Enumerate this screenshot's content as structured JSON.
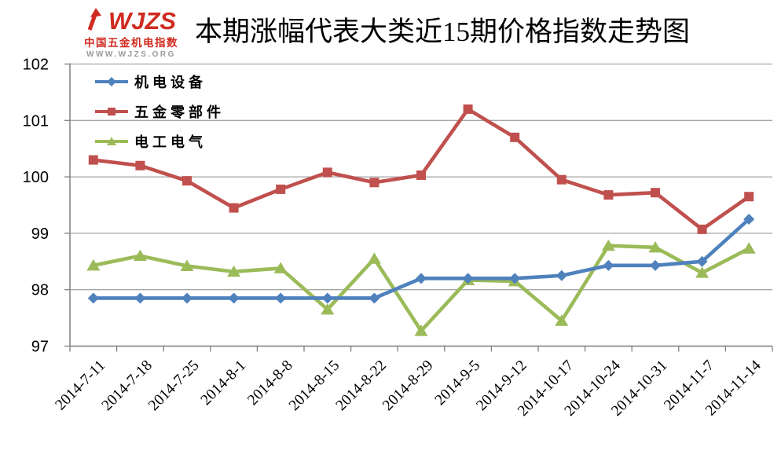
{
  "logo": {
    "brand": "WJZS",
    "subtitle": "中国五金机电指数",
    "url": "WWW.WJZS.ORG",
    "brand_color": "#d02b20"
  },
  "title": "本期涨幅代表大类近15期价格指数走势图",
  "chart_data": {
    "type": "line",
    "title": "本期涨幅代表大类近15期价格指数走势图",
    "categories": [
      "2014-7-11",
      "2014-7-18",
      "2014-7-25",
      "2014-8-1",
      "2014-8-8",
      "2014-8-15",
      "2014-8-22",
      "2014-8-29",
      "2014-9-5",
      "2014-9-12",
      "2014-10-17",
      "2014-10-24",
      "2014-10-31",
      "2014-11-7",
      "2014-11-14"
    ],
    "series": [
      {
        "name": "机电设备",
        "color": "#4f81bd",
        "marker": "diamond",
        "values": [
          97.85,
          97.85,
          97.85,
          97.85,
          97.85,
          97.85,
          97.85,
          98.2,
          98.2,
          98.2,
          98.25,
          98.43,
          98.43,
          98.5,
          99.25
        ]
      },
      {
        "name": "五金零部件",
        "color": "#c0504d",
        "marker": "square",
        "values": [
          100.3,
          100.2,
          99.93,
          99.45,
          99.78,
          100.08,
          99.9,
          100.03,
          101.2,
          100.7,
          99.95,
          99.68,
          99.72,
          99.07,
          99.65
        ]
      },
      {
        "name": "电工电气",
        "color": "#9bbb59",
        "marker": "triangle",
        "values": [
          98.43,
          98.6,
          98.42,
          98.32,
          98.38,
          97.65,
          98.55,
          97.27,
          98.17,
          98.15,
          97.45,
          98.78,
          98.75,
          98.3,
          98.73
        ]
      }
    ],
    "ylim": [
      97,
      102
    ],
    "ytick_step": 1,
    "grid": true,
    "legend_position": "top-left-inside",
    "xlabel": "",
    "ylabel": ""
  },
  "colors": {
    "gridline": "#a6a6a6",
    "axis": "#808080",
    "text": "#000000"
  }
}
